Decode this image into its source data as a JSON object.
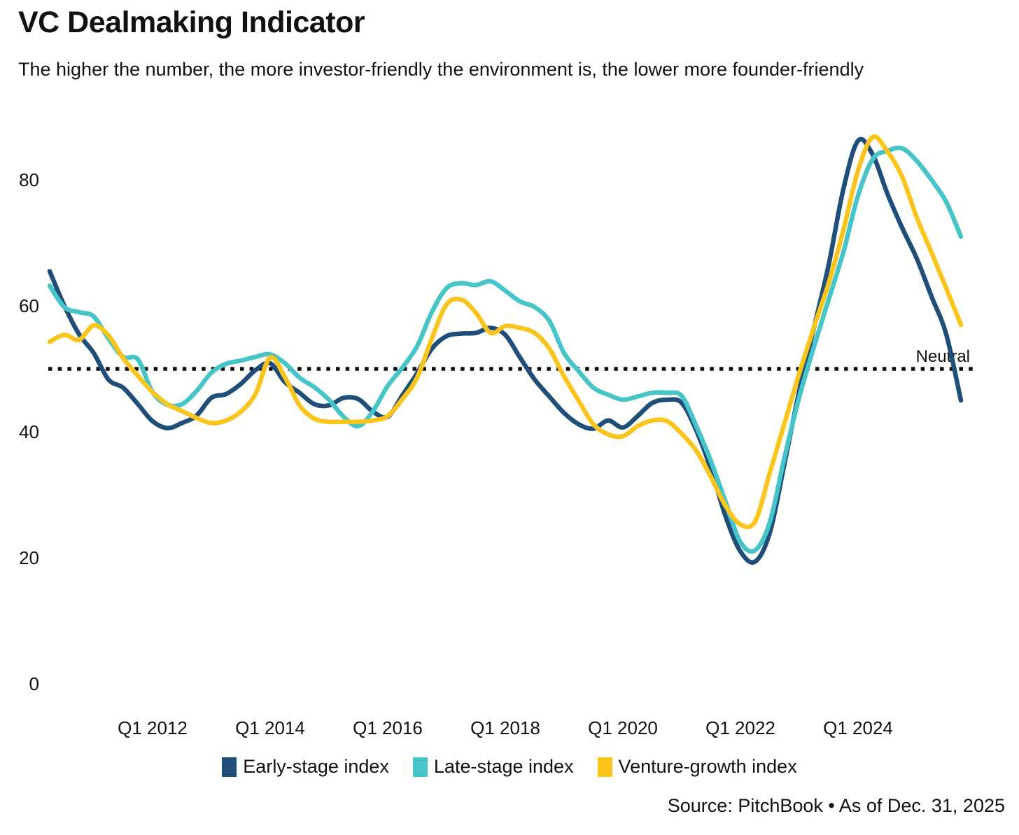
{
  "header": {
    "title": "VC Dealmaking Indicator",
    "subtitle": "The higher the number, the more investor-friendly the environment is, the lower more founder-friendly"
  },
  "footer": {
    "source": "Source: PitchBook • As of Dec. 31, 2025"
  },
  "chart_data": {
    "type": "line",
    "title": "VC Dealmaking Indicator",
    "xlabel": "",
    "ylabel": "",
    "ylim": [
      0,
      90
    ],
    "grid": false,
    "legend_position": "bottom",
    "y_ticks": [
      80,
      60,
      40,
      20,
      0
    ],
    "x_interval": "quarter",
    "x_start_quarter": "Q2 2010",
    "x_end_quarter": "Q4 2025",
    "x_ticks": [
      {
        "label": "Q1 2012",
        "quarter_index": 7
      },
      {
        "label": "Q1 2014",
        "quarter_index": 15
      },
      {
        "label": "Q1 2016",
        "quarter_index": 23
      },
      {
        "label": "Q1 2018",
        "quarter_index": 31
      },
      {
        "label": "Q1 2020",
        "quarter_index": 39
      },
      {
        "label": "Q1 2022",
        "quarter_index": 47
      },
      {
        "label": "Q1 2024",
        "quarter_index": 55
      }
    ],
    "neutral_line": {
      "label": "Neutral",
      "value": 50,
      "style": "dotted",
      "color": "#111111"
    },
    "series": [
      {
        "name": "Early-stage index",
        "color": "#1F4E79",
        "values": [
          65.5,
          60.0,
          55.5,
          52.5,
          48.3,
          47.0,
          44.4,
          41.7,
          40.6,
          41.4,
          42.6,
          45.4,
          46.0,
          47.6,
          49.8,
          50.9,
          47.9,
          46.2,
          44.4,
          44.2,
          45.4,
          45.2,
          43.2,
          42.4,
          45.8,
          49.3,
          53.2,
          55.2,
          55.6,
          55.7,
          56.5,
          55.4,
          51.8,
          48.3,
          45.6,
          43.0,
          41.2,
          40.5,
          41.8,
          40.7,
          42.5,
          44.6,
          45.1,
          44.6,
          40.2,
          34.0,
          26.5,
          21.0,
          19.4,
          24.0,
          35.0,
          46.5,
          56.5,
          66.5,
          78.5,
          86.2,
          84.0,
          77.8,
          72.4,
          67.5,
          61.5,
          55.5,
          45.0
        ]
      },
      {
        "name": "Late-stage index",
        "color": "#46C4C8",
        "values": [
          63.2,
          59.8,
          59.0,
          58.3,
          54.8,
          51.9,
          51.5,
          46.3,
          44.3,
          44.4,
          46.5,
          49.4,
          50.8,
          51.3,
          51.9,
          52.3,
          50.9,
          48.6,
          47.1,
          45.1,
          42.4,
          40.9,
          43.3,
          47.3,
          50.2,
          53.6,
          59.0,
          62.8,
          63.6,
          63.3,
          63.9,
          62.4,
          60.7,
          59.8,
          57.6,
          52.5,
          49.6,
          47.0,
          45.9,
          45.1,
          45.6,
          46.2,
          46.2,
          45.7,
          40.9,
          35.3,
          28.8,
          22.5,
          21.2,
          25.7,
          36.0,
          45.5,
          53.5,
          61.0,
          68.5,
          77.5,
          83.3,
          84.6,
          85.0,
          83.0,
          80.0,
          76.5,
          71.0
        ]
      },
      {
        "name": "Venture-growth index",
        "color": "#F9C51D",
        "values": [
          54.3,
          55.4,
          54.6,
          56.9,
          55.3,
          51.7,
          48.9,
          46.3,
          44.4,
          43.3,
          42.2,
          41.4,
          41.8,
          43.2,
          46.0,
          51.8,
          48.7,
          44.2,
          42.1,
          41.6,
          41.6,
          41.6,
          41.8,
          42.5,
          45.2,
          48.6,
          54.8,
          60.2,
          61.0,
          58.9,
          55.7,
          56.8,
          56.5,
          55.7,
          53.2,
          48.8,
          44.9,
          41.2,
          39.6,
          39.3,
          40.9,
          41.8,
          41.7,
          39.7,
          37.0,
          32.8,
          28.2,
          25.3,
          25.8,
          33.5,
          41.4,
          49.3,
          56.6,
          63.6,
          72.0,
          81.5,
          86.8,
          84.5,
          80.5,
          74.0,
          68.5,
          62.8,
          57.0
        ]
      }
    ]
  }
}
